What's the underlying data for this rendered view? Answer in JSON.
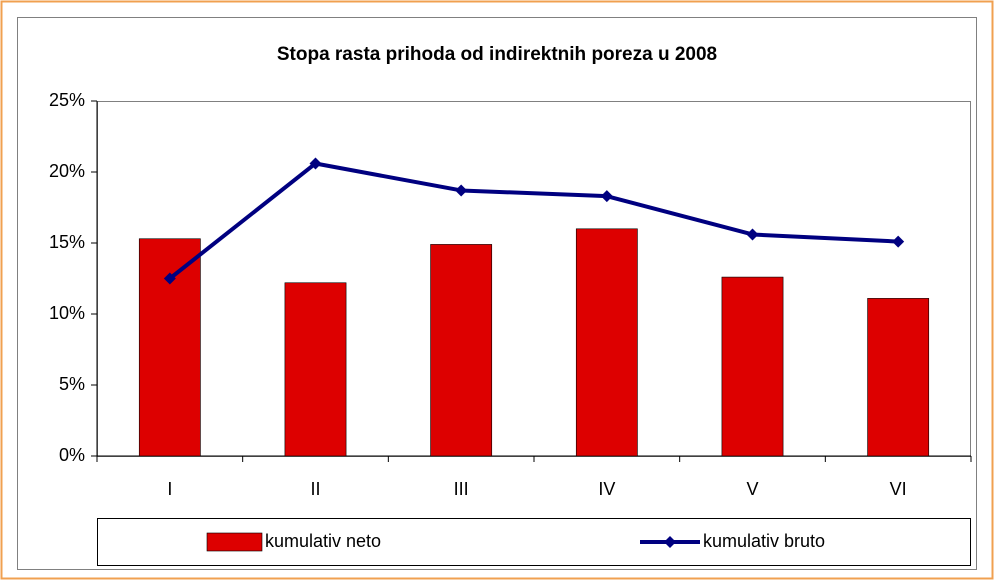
{
  "chart_data": {
    "type": "combo",
    "title": "Stopa rasta prihoda od indirektnih poreza u 2008",
    "categories": [
      "I",
      "II",
      "III",
      "IV",
      "V",
      "VI"
    ],
    "series": [
      {
        "name": "kumulativ neto",
        "type": "bar",
        "color": "#dd0000",
        "values": [
          15.3,
          12.2,
          14.9,
          16.0,
          12.6,
          11.1
        ]
      },
      {
        "name": "kumulativ bruto",
        "type": "line",
        "color": "#000080",
        "values": [
          12.5,
          20.6,
          18.7,
          18.3,
          15.6,
          15.1
        ]
      }
    ],
    "ylim": [
      0,
      25
    ],
    "yticks": [
      {
        "value": 0,
        "label": "0%"
      },
      {
        "value": 5,
        "label": "5%"
      },
      {
        "value": 10,
        "label": "10%"
      },
      {
        "value": 15,
        "label": "15%"
      },
      {
        "value": 20,
        "label": "20%"
      },
      {
        "value": 25,
        "label": "25%"
      }
    ],
    "grid": false,
    "legend": "bottom"
  }
}
